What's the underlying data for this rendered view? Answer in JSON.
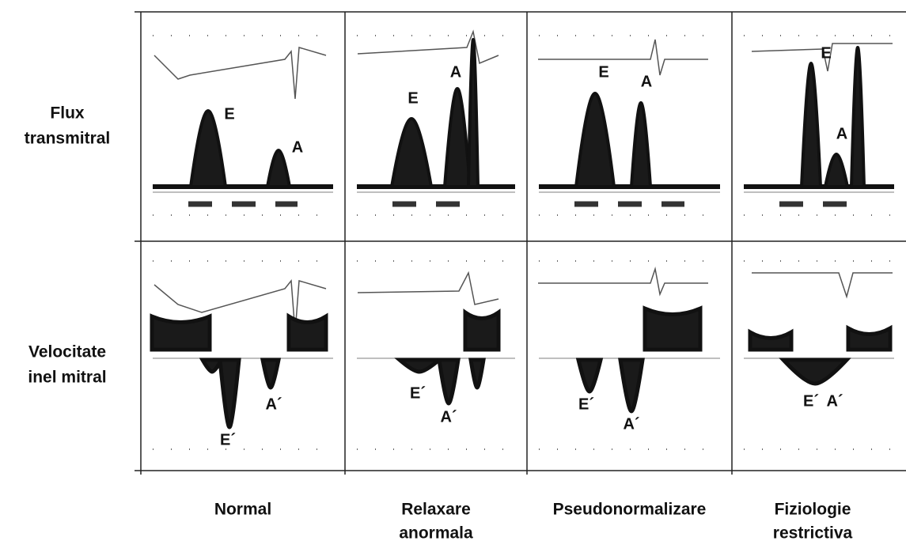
{
  "row_labels": [
    [
      "Flux",
      "transmitral"
    ],
    [
      "Velocitate",
      "inel mitral"
    ]
  ],
  "column_labels": [
    [
      "Normal"
    ],
    [
      "Relaxare",
      "anormala"
    ],
    [
      "Pseudonormalizare"
    ],
    [
      "Fiziologie",
      "restrictiva"
    ]
  ],
  "flow_panels": [
    [
      "E",
      "A"
    ],
    [
      "E",
      "A"
    ],
    [
      "E",
      "A"
    ],
    [
      "E",
      "A"
    ]
  ],
  "tissue_panels": [
    [
      "E´",
      "A´"
    ],
    [
      "E´",
      "A´"
    ],
    [
      "E´",
      "A´"
    ],
    [
      "E´",
      "A´"
    ]
  ]
}
